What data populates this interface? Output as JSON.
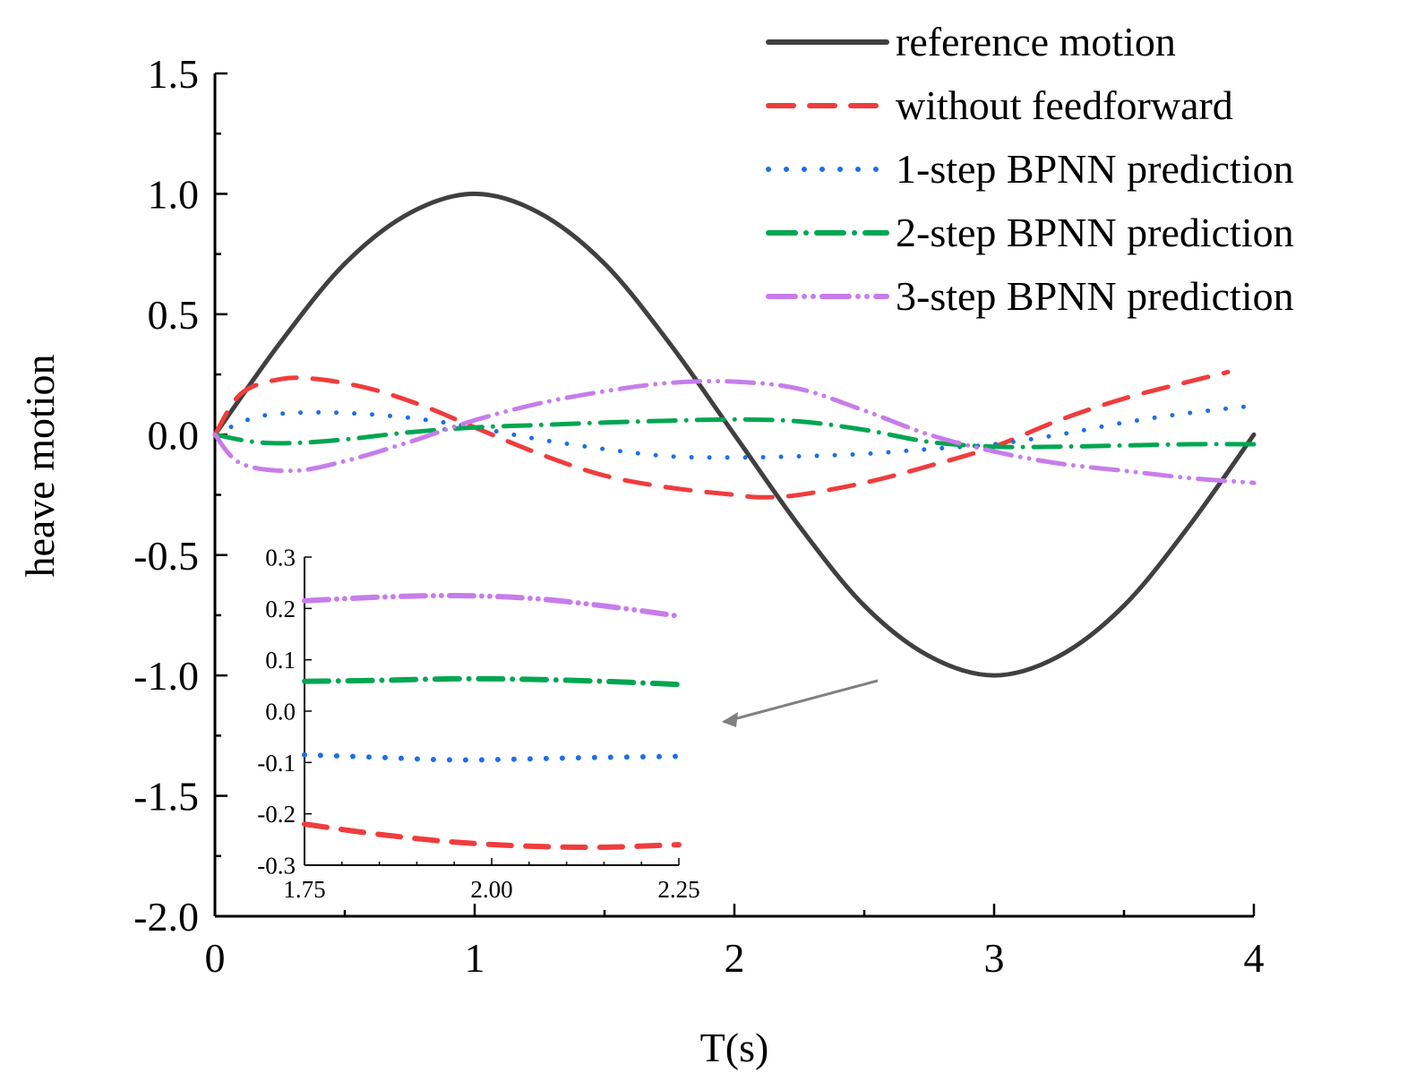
{
  "chart_data": [
    {
      "type": "line",
      "xlabel": "T(s)",
      "ylabel": "heave motion",
      "xlim": [
        0,
        4
      ],
      "ylim": [
        -2.0,
        1.5
      ],
      "x_ticks": [
        "0",
        "1",
        "2",
        "3",
        "4"
      ],
      "y_ticks": [
        "-2.0",
        "-1.5",
        "-1.0",
        "-0.5",
        "0.0",
        "0.5",
        "1.0",
        "1.5"
      ],
      "legend_position": "top-right",
      "series": [
        {
          "name": "reference motion",
          "color": "#404040",
          "style": "solid",
          "x": [
            0,
            0.25,
            0.5,
            0.75,
            1.0,
            1.25,
            1.5,
            1.75,
            2.0,
            2.25,
            2.5,
            2.75,
            3.0,
            3.25,
            3.5,
            3.75,
            4.0
          ],
          "y": [
            0,
            0.38,
            0.71,
            0.92,
            1.0,
            0.92,
            0.71,
            0.38,
            0,
            -0.38,
            -0.71,
            -0.92,
            -1.0,
            -0.92,
            -0.71,
            -0.38,
            0
          ]
        },
        {
          "name": "without feedforward",
          "color": "#f03c3c",
          "style": "dashed",
          "x": [
            0,
            0.1,
            0.25,
            0.4,
            0.6,
            0.8,
            1.0,
            1.25,
            1.5,
            1.75,
            2.0,
            2.1,
            2.25,
            2.5,
            2.75,
            3.0,
            3.25,
            3.5,
            3.75,
            3.9
          ],
          "y": [
            0,
            0.17,
            0.23,
            0.23,
            0.19,
            0.12,
            0.03,
            -0.08,
            -0.17,
            -0.22,
            -0.25,
            -0.26,
            -0.25,
            -0.2,
            -0.13,
            -0.05,
            0.06,
            0.15,
            0.22,
            0.26
          ]
        },
        {
          "name": "1-step BPNN prediction",
          "color": "#1e6fe6",
          "style": "dotted",
          "x": [
            0,
            0.15,
            0.3,
            0.5,
            0.75,
            1.0,
            1.25,
            1.5,
            1.75,
            2.0,
            2.25,
            2.5,
            2.75,
            3.0,
            3.25,
            3.5,
            3.75,
            4.0
          ],
          "y": [
            0,
            0.07,
            0.09,
            0.09,
            0.07,
            0.03,
            -0.02,
            -0.06,
            -0.09,
            -0.095,
            -0.09,
            -0.08,
            -0.06,
            -0.04,
            0.0,
            0.05,
            0.09,
            0.12
          ]
        },
        {
          "name": "2-step BPNN prediction",
          "color": "#00a651",
          "style": "dashdot",
          "x": [
            0,
            0.15,
            0.3,
            0.5,
            0.75,
            1.0,
            1.25,
            1.5,
            1.75,
            2.0,
            2.25,
            2.5,
            2.75,
            3.0,
            3.25,
            3.5,
            3.75,
            4.0
          ],
          "y": [
            0,
            -0.03,
            -0.035,
            -0.02,
            0.01,
            0.03,
            0.04,
            0.05,
            0.058,
            0.063,
            0.055,
            0.02,
            -0.03,
            -0.05,
            -0.05,
            -0.045,
            -0.04,
            -0.04
          ]
        },
        {
          "name": "3-step BPNN prediction",
          "color": "#c77dea",
          "style": "dashdotdot",
          "x": [
            0,
            0.1,
            0.3,
            0.5,
            0.75,
            1.0,
            1.25,
            1.5,
            1.75,
            2.0,
            2.25,
            2.5,
            2.75,
            3.0,
            3.25,
            3.5,
            3.75,
            4.0
          ],
          "y": [
            0,
            -0.12,
            -0.15,
            -0.11,
            -0.03,
            0.06,
            0.13,
            0.18,
            0.215,
            0.22,
            0.19,
            0.1,
            0.0,
            -0.07,
            -0.12,
            -0.15,
            -0.18,
            -0.2
          ]
        }
      ]
    },
    {
      "type": "line",
      "xlim": [
        1.75,
        2.25
      ],
      "ylim": [
        -0.3,
        0.3
      ],
      "x_ticks": [
        "1.75",
        "2.00",
        "2.25"
      ],
      "y_ticks": [
        "-0.3",
        "-0.2",
        "-0.1",
        "0.0",
        "0.1",
        "0.2",
        "0.3"
      ],
      "series": [
        {
          "color": "#f03c3c",
          "style": "dashed",
          "x": [
            1.75,
            1.85,
            1.95,
            2.05,
            2.15,
            2.25
          ],
          "y": [
            -0.22,
            -0.24,
            -0.255,
            -0.263,
            -0.265,
            -0.26
          ]
        },
        {
          "color": "#1e6fe6",
          "style": "dotted",
          "x": [
            1.75,
            1.85,
            1.95,
            2.05,
            2.15,
            2.25
          ],
          "y": [
            -0.085,
            -0.09,
            -0.095,
            -0.093,
            -0.09,
            -0.088
          ]
        },
        {
          "color": "#00a651",
          "style": "dashdot",
          "x": [
            1.75,
            1.85,
            1.95,
            2.05,
            2.15,
            2.25
          ],
          "y": [
            0.058,
            0.06,
            0.063,
            0.062,
            0.058,
            0.052
          ]
        },
        {
          "color": "#c77dea",
          "style": "dashdotdot",
          "x": [
            1.75,
            1.85,
            1.95,
            2.05,
            2.15,
            2.25
          ],
          "y": [
            0.215,
            0.222,
            0.225,
            0.22,
            0.205,
            0.185
          ]
        }
      ]
    }
  ]
}
